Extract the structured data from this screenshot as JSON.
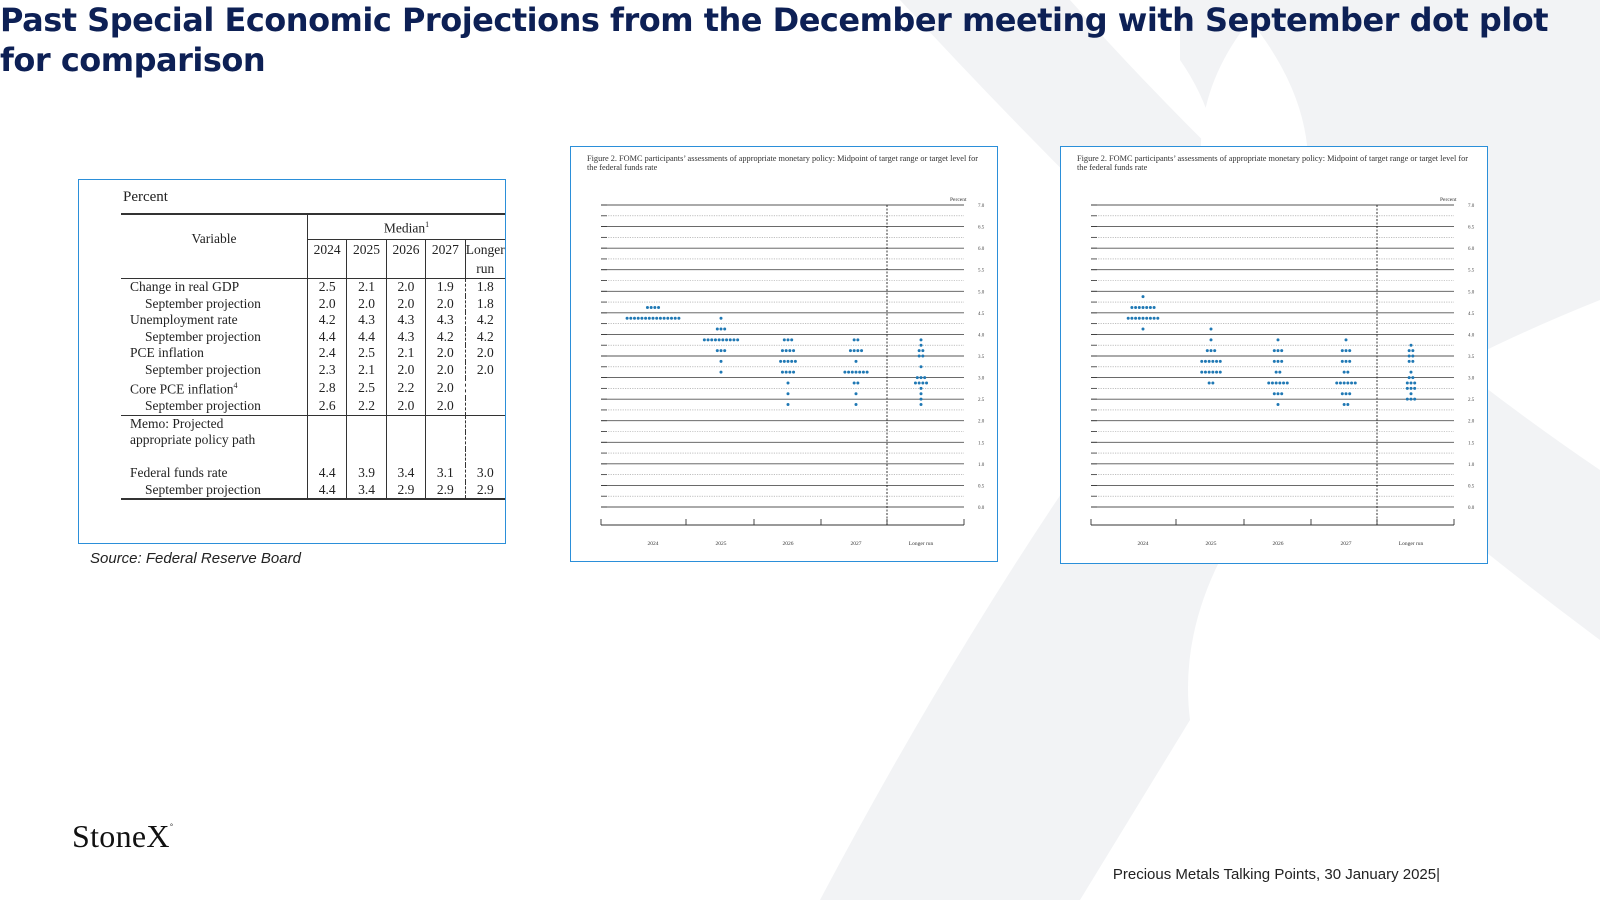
{
  "title": "Past Special Economic Projections from the December meeting with September dot plot for comparison",
  "colors": {
    "title": "#0d2055",
    "border": "#2b8fd9",
    "dot": "#1f78b4"
  },
  "table": {
    "unit": "Percent",
    "variable_header": "Variable",
    "median_header": "Median",
    "median_footnote": "1",
    "years": [
      "2024",
      "2025",
      "2026",
      "2027"
    ],
    "longer_run_line1": "Longer",
    "longer_run_line2": "run",
    "rows": [
      {
        "label": "Change in real GDP",
        "values": [
          "2.5",
          "2.1",
          "2.0",
          "1.9"
        ],
        "longer": "1.8"
      },
      {
        "label": "September projection",
        "values": [
          "2.0",
          "2.0",
          "2.0",
          "2.0"
        ],
        "longer": "1.8"
      },
      {
        "label": "Unemployment rate",
        "values": [
          "4.2",
          "4.3",
          "4.3",
          "4.3"
        ],
        "longer": "4.2"
      },
      {
        "label": "September projection",
        "values": [
          "4.4",
          "4.4",
          "4.3",
          "4.2"
        ],
        "longer": "4.2"
      },
      {
        "label": "PCE inflation",
        "values": [
          "2.4",
          "2.5",
          "2.1",
          "2.0"
        ],
        "longer": "2.0"
      },
      {
        "label": "September projection",
        "values": [
          "2.3",
          "2.1",
          "2.0",
          "2.0"
        ],
        "longer": "2.0"
      },
      {
        "label": "Core PCE inflation",
        "footnote": "4",
        "values": [
          "2.8",
          "2.5",
          "2.2",
          "2.0"
        ],
        "longer": ""
      },
      {
        "label": "September projection",
        "values": [
          "2.6",
          "2.2",
          "2.0",
          "2.0"
        ],
        "longer": ""
      }
    ],
    "memo_line1": "Memo: Projected",
    "memo_line2": "appropriate policy path",
    "memo_rows": [
      {
        "label": "Federal funds rate",
        "values": [
          "4.4",
          "3.9",
          "3.4",
          "3.1"
        ],
        "longer": "3.0"
      },
      {
        "label": "September projection",
        "values": [
          "4.4",
          "3.4",
          "2.9",
          "2.9"
        ],
        "longer": "2.9"
      }
    ]
  },
  "source": "Source: Federal Reserve Board",
  "chart_data": [
    {
      "type": "scatter",
      "title": "Figure 2.  FOMC participants’ assessments of appropriate monetary policy:  Midpoint of target range or target level for the federal funds rate",
      "ylabel": "Percent",
      "ylim": [
        0,
        7
      ],
      "yticks": [
        "0.0",
        "0.5",
        "1.0",
        "1.5",
        "2.0",
        "2.5",
        "3.0",
        "3.5",
        "4.0",
        "4.5",
        "5.0",
        "5.5",
        "6.0",
        "6.5",
        "7.0"
      ],
      "categories": [
        "2024",
        "2025",
        "2026",
        "2027",
        "Longer run"
      ],
      "grid": true,
      "dots": [
        {
          "x": "2024",
          "counts": {
            "4.625": 4,
            "4.375": 15
          }
        },
        {
          "x": "2025",
          "counts": {
            "4.375": 1,
            "4.125": 3,
            "3.875": 10,
            "3.625": 3,
            "3.375": 1,
            "3.125": 1
          }
        },
        {
          "x": "2026",
          "counts": {
            "3.875": 3,
            "3.625": 4,
            "3.375": 5,
            "3.125": 4,
            "2.875": 1,
            "2.625": 1,
            "2.375": 1
          }
        },
        {
          "x": "2027",
          "counts": {
            "3.875": 2,
            "3.625": 4,
            "3.375": 1,
            "3.125": 7,
            "2.875": 2,
            "2.625": 1,
            "2.375": 1
          }
        },
        {
          "x": "Longer run",
          "counts": {
            "3.875": 1,
            "3.75": 1,
            "3.625": 2,
            "3.5": 2,
            "3.25": 1,
            "3.0": 3,
            "2.875": 4,
            "2.75": 1,
            "2.625": 1,
            "2.5": 1,
            "2.375": 1
          }
        }
      ]
    },
    {
      "type": "scatter",
      "title": "Figure 2.  FOMC participants’ assessments of appropriate monetary policy:  Midpoint of target range or target level for the federal funds rate",
      "ylabel": "Percent",
      "ylim": [
        0,
        7
      ],
      "yticks": [
        "0.0",
        "0.5",
        "1.0",
        "1.5",
        "2.0",
        "2.5",
        "3.0",
        "3.5",
        "4.0",
        "4.5",
        "5.0",
        "5.5",
        "6.0",
        "6.5",
        "7.0"
      ],
      "categories": [
        "2024",
        "2025",
        "2026",
        "2027",
        "Longer run"
      ],
      "grid": true,
      "dots": [
        {
          "x": "2024",
          "counts": {
            "4.875": 1,
            "4.625": 7,
            "4.375": 9,
            "4.125": 1
          }
        },
        {
          "x": "2025",
          "counts": {
            "4.125": 1,
            "3.875": 1,
            "3.625": 3,
            "3.375": 6,
            "3.125": 6,
            "2.875": 2
          }
        },
        {
          "x": "2026",
          "counts": {
            "3.875": 1,
            "3.625": 3,
            "3.375": 3,
            "3.125": 2,
            "2.875": 6,
            "2.625": 3,
            "2.375": 1
          }
        },
        {
          "x": "2027",
          "counts": {
            "3.875": 1,
            "3.625": 3,
            "3.375": 3,
            "3.125": 2,
            "2.875": 6,
            "2.625": 3,
            "2.375": 2
          }
        },
        {
          "x": "Longer run",
          "counts": {
            "3.75": 1,
            "3.625": 2,
            "3.5": 2,
            "3.375": 2,
            "3.125": 1,
            "3.0": 2,
            "2.875": 3,
            "2.75": 3,
            "2.625": 1,
            "2.5": 3
          }
        }
      ]
    }
  ],
  "footer": "Precious Metals Talking Points, 30 January 2025|",
  "logo": "StoneX",
  "logo_mark": "°"
}
